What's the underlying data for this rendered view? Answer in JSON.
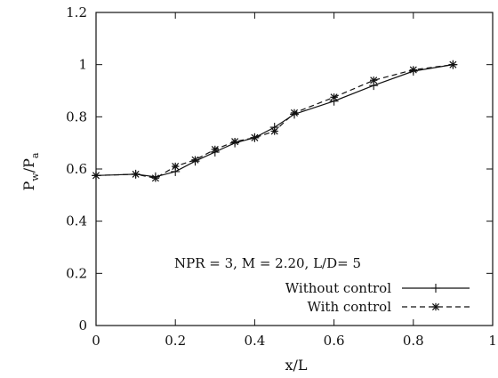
{
  "chart_data": {
    "type": "line",
    "xlabel": "x/L",
    "ylabel_main": "P",
    "ylabel_sub_w": "w",
    "ylabel_slash": "/P",
    "ylabel_sub_a": "a",
    "xlim": [
      0,
      1
    ],
    "ylim": [
      0,
      1.2
    ],
    "xticks": [
      "0",
      "0.2",
      "0.4",
      "0.6",
      "0.8",
      "1"
    ],
    "yticks": [
      "0",
      "0.2",
      "0.4",
      "0.6",
      "0.8",
      "1",
      "1.2"
    ],
    "annotation": "NPR = 3, M = 2.20, L/D= 5",
    "grid": false,
    "legend_position": "bottom-right",
    "series": [
      {
        "name": "Without control",
        "style": "solid",
        "marker": "plus",
        "x": [
          0,
          0.1,
          0.15,
          0.2,
          0.25,
          0.3,
          0.35,
          0.4,
          0.45,
          0.5,
          0.6,
          0.7,
          0.8,
          0.9
        ],
        "y": [
          0.575,
          0.58,
          0.57,
          0.59,
          0.63,
          0.665,
          0.7,
          0.72,
          0.76,
          0.81,
          0.86,
          0.92,
          0.975,
          1.0
        ]
      },
      {
        "name": "With control",
        "style": "dashed",
        "marker": "star",
        "x": [
          0,
          0.1,
          0.15,
          0.2,
          0.25,
          0.3,
          0.35,
          0.4,
          0.45,
          0.5,
          0.6,
          0.7,
          0.8,
          0.9
        ],
        "y": [
          0.575,
          0.58,
          0.565,
          0.61,
          0.635,
          0.675,
          0.705,
          0.72,
          0.745,
          0.815,
          0.875,
          0.94,
          0.98,
          1.0
        ]
      }
    ]
  }
}
